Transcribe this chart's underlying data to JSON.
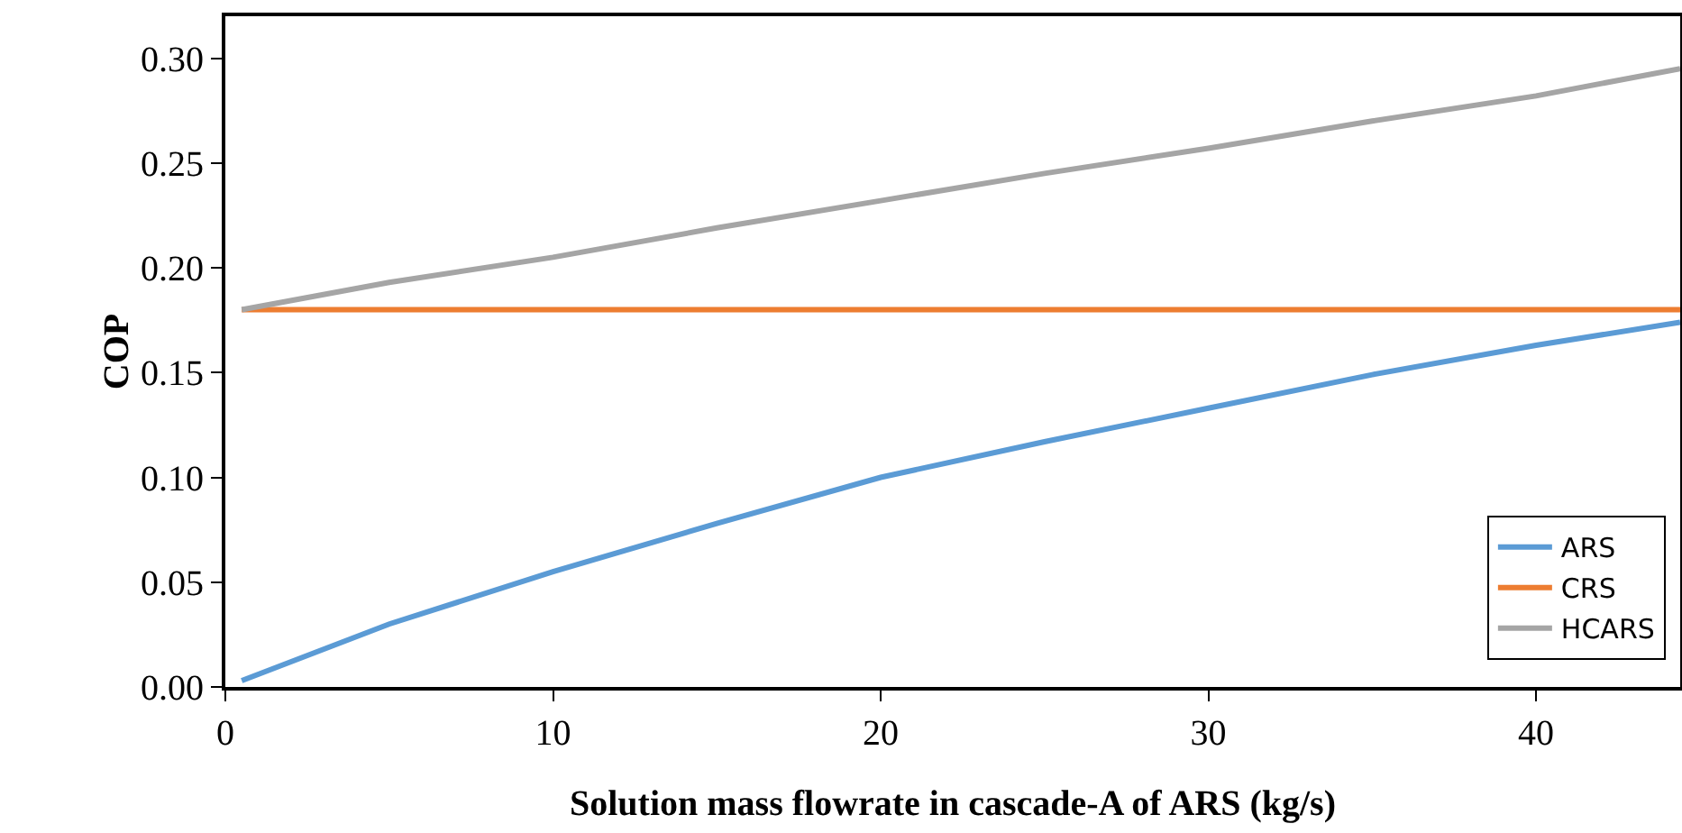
{
  "chart_data": {
    "type": "line",
    "xlabel": "Solution mass flowrate in cascade-A of ARS (kg/s)",
    "ylabel": "COP",
    "x": [
      0.5,
      5,
      10,
      15,
      20,
      25,
      30,
      35,
      40,
      44.4
    ],
    "series": [
      {
        "name": "ARS",
        "color": "#5b9bd5",
        "values": [
          0.003,
          0.03,
          0.055,
          0.078,
          0.1,
          0.117,
          0.133,
          0.149,
          0.163,
          0.174
        ]
      },
      {
        "name": "CRS",
        "color": "#ed7d31",
        "values": [
          0.18,
          0.18,
          0.18,
          0.18,
          0.18,
          0.18,
          0.18,
          0.18,
          0.18,
          0.18
        ]
      },
      {
        "name": "HCARS",
        "color": "#a5a5a5",
        "values": [
          0.18,
          0.193,
          0.205,
          0.219,
          0.232,
          0.245,
          0.257,
          0.27,
          0.282,
          0.295
        ]
      }
    ],
    "xlim": [
      0,
      44.4
    ],
    "xticks": [
      0,
      10,
      20,
      30,
      40
    ],
    "ylim": [
      0,
      0.32
    ],
    "yticks": [
      {
        "value": 0,
        "label": "0.00"
      },
      {
        "value": 0.05,
        "label": "0.05"
      },
      {
        "value": 0.1,
        "label": "0.10"
      },
      {
        "value": 0.15,
        "label": "0.15"
      },
      {
        "value": 0.2,
        "label": "0.20"
      },
      {
        "value": 0.25,
        "label": "0.25"
      },
      {
        "value": 0.3,
        "label": "0.30"
      }
    ],
    "grid": false,
    "legend": "bottom right",
    "marker": "none",
    "line_style": "solid"
  }
}
